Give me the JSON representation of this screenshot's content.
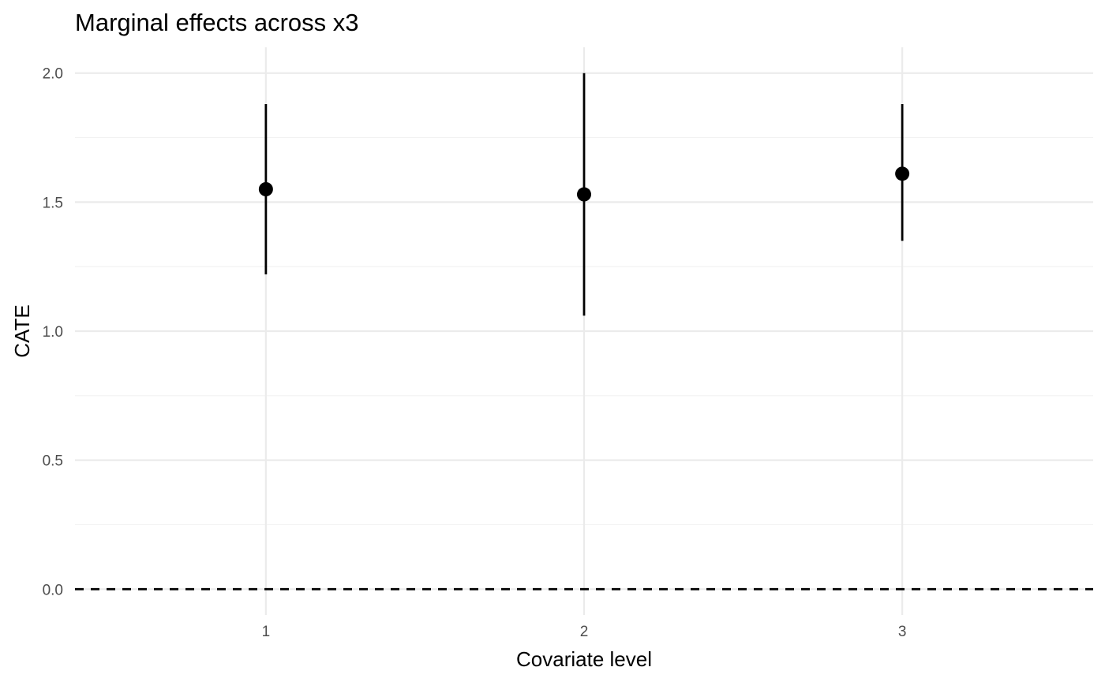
{
  "chart_data": {
    "type": "scatter",
    "title": "Marginal effects across x3",
    "xlabel": "Covariate level",
    "ylabel": "CATE",
    "categories": [
      "1",
      "2",
      "3"
    ],
    "x_tick_labels": [
      "1",
      "2",
      "3"
    ],
    "y_ticks": [
      0.0,
      0.5,
      1.0,
      1.5,
      2.0
    ],
    "y_tick_labels": [
      "0.0",
      "0.5",
      "1.0",
      "1.5",
      "2.0"
    ],
    "ylim": [
      -0.1,
      2.1
    ],
    "series": [
      {
        "points": [
          {
            "x": "1",
            "y": 1.55,
            "lower": 1.22,
            "upper": 1.88
          },
          {
            "x": "2",
            "y": 1.53,
            "lower": 1.06,
            "upper": 2.0
          },
          {
            "x": "3",
            "y": 1.61,
            "lower": 1.35,
            "upper": 1.88
          }
        ]
      }
    ],
    "reference_line": {
      "y": 0,
      "style": "dashed"
    },
    "grid": true,
    "legend": "none",
    "colors": {
      "points": "#000000",
      "grid": "#ebebeb",
      "tick_text": "#4d4d4d"
    }
  }
}
